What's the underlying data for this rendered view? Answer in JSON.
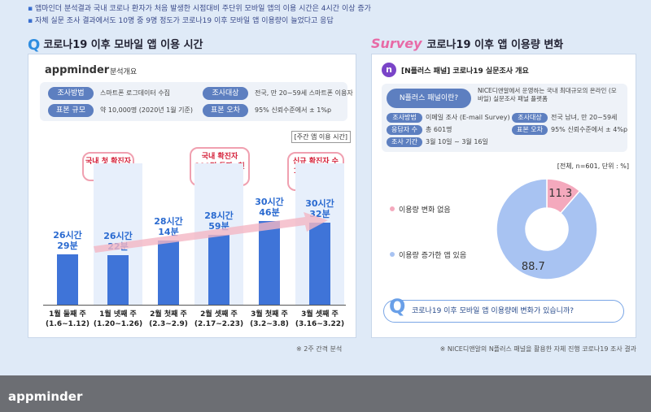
{
  "header_bullets": [
    "앱마인더 분석결과 국내 코로나 환자가 처음 발생한 시점대비 주단위 모바일 앱의 이용 시간은 4시간 이상 증가",
    "자체 실문 조사 결과에서도 10명 중 9명 정도가 코로나19 이후 모바일 앱 이용량이 늘었다고 응답"
  ],
  "left": {
    "title": "코로나19 이후 모바일 앱 이용 시간",
    "brand": "appminder",
    "brand_sub": "분석개요",
    "info": [
      {
        "label": "조사방법",
        "value": "스마트폰 로그데이터 수집"
      },
      {
        "label": "조사대상",
        "value": "전국, 만 20~59세 스마트폰 이용자"
      },
      {
        "label": "표본 규모",
        "value": "약 10,000명 (2020년 1월 기준)"
      },
      {
        "label": "표본 오차",
        "value": "95% 신뢰수준에서 ± 1%p"
      }
    ],
    "unit": "[주간 앱 이용 시간]",
    "note": "※ 2주 간격 분석",
    "callouts": [
      "국내 첫 확진자 발생",
      "국내 확진자 100명 돌파, 첫 사망자 발생",
      "신규 확진자 수 100명대로 둔화"
    ]
  },
  "chart_data": [
    {
      "type": "bar",
      "title": "코로나19 이후 모바일 앱 이용 시간",
      "ylabel": "[주간 앱 이용 시간]",
      "categories": [
        "1월 둘째 주 (1.6~1.12)",
        "1월 넷째 주 (1.20~1.26)",
        "2월 첫째 주 (2.3~2.9)",
        "2월 셋째 주 (2.17~2.23)",
        "3월 첫째 주 (3.2~3.8)",
        "3월 셋째 주 (3.16~3.22)"
      ],
      "category_lines": [
        [
          "1월 둘째 주",
          "(1.6~1.12)"
        ],
        [
          "1월 넷째 주",
          "(1.20~1.26)"
        ],
        [
          "2월 첫째 주",
          "(2.3~2.9)"
        ],
        [
          "2월 셋째 주",
          "(2.17~2.23)"
        ],
        [
          "3월 첫째 주",
          "(3.2~3.8)"
        ],
        [
          "3월 셋째 주",
          "(3.16~3.22)"
        ]
      ],
      "values_minutes": [
        1589,
        1582,
        1694,
        1739,
        1846,
        1832
      ],
      "labels": [
        [
          "26시간",
          "29분"
        ],
        [
          "26시간",
          "22분"
        ],
        [
          "28시간",
          "14분"
        ],
        [
          "28시간",
          "59분"
        ],
        [
          "30시간",
          "46분"
        ],
        [
          "30시간",
          "32분"
        ]
      ],
      "ylim": [
        1200,
        1900
      ]
    },
    {
      "type": "pie",
      "title": "코로나19 이후 앱 이용량 변화",
      "unit": "[전체, n=601, 단위 : %]",
      "slices": [
        {
          "name": "이용량 변화 없음",
          "value": 11.3,
          "color": "#f4a9bd"
        },
        {
          "name": "이용량 증가한 앱 있음",
          "value": 88.7,
          "color": "#a8c3f2"
        }
      ]
    }
  ],
  "right": {
    "title_prefix": "Survey",
    "title": "코로나19 이후 앱 이용량 변화",
    "sub": "[N플러스 패널] 코로나19 실문조사 개요",
    "panel_q": "N플러스 패널이란?",
    "panel_desc": "NICE디앤알에서 운영하는 국내 최대규모의 온라인 (모바일) 실문조사 패널 플랫폼",
    "info": [
      {
        "label": "조사방법",
        "value": "이메일 조사 (E-mail Survey)"
      },
      {
        "label": "조사대상",
        "value": "전국 남녀, 만 20~59세"
      },
      {
        "label": "응답자 수",
        "value": "총 601명"
      },
      {
        "label": "표본 오차",
        "value": "95% 신뢰수준에서 ± 4%p"
      },
      {
        "label": "조사 기간",
        "value": "3월 10일 ~ 3월 16일"
      }
    ],
    "question": "코로나19 이후 모바일 앱 이용량에 변화가 있습니까?",
    "note": "※ NICE디앤알의 N플러스 패널을 활용한 자체 진행 코로나19 조사 결과"
  },
  "footer": {
    "brand": "appminder"
  },
  "colors": {
    "bar": "#3f74d8",
    "accent_pink": "#e86aa6",
    "tag": "#5d7fc0"
  }
}
